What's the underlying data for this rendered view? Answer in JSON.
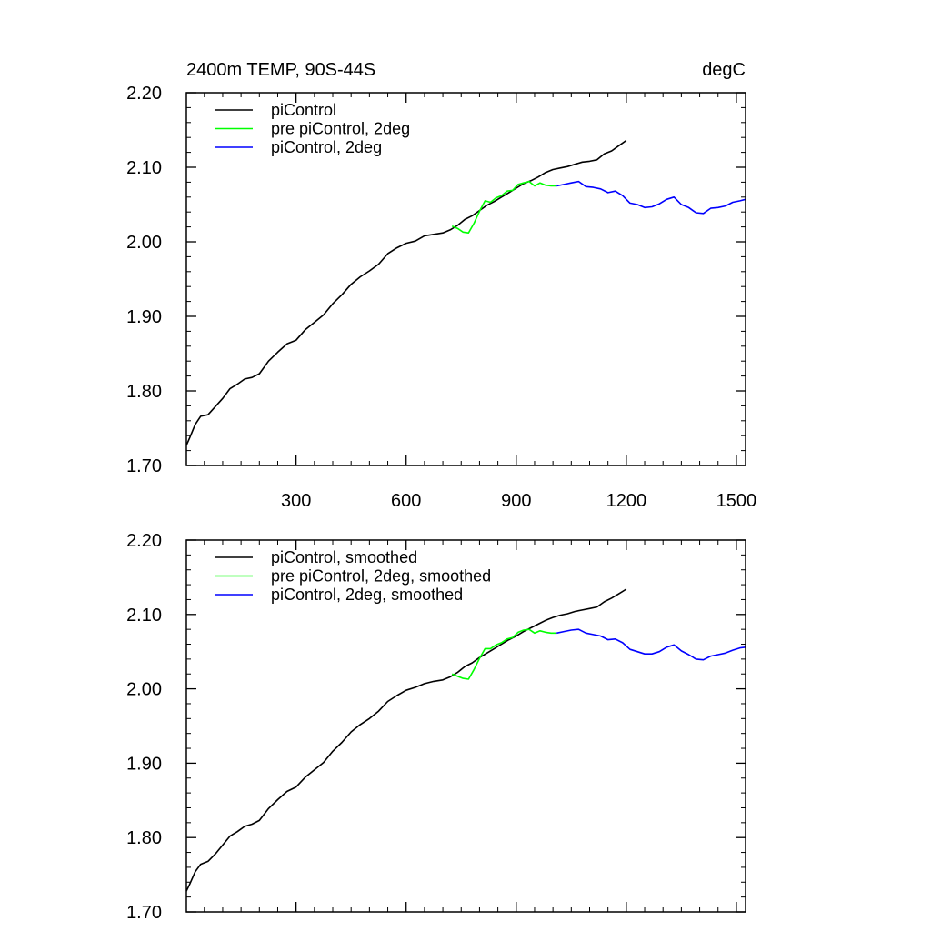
{
  "colors": {
    "piControl": "#000000",
    "pre_piControl_2deg": "#00ff00",
    "piControl_2deg": "#0000ff",
    "axes": "#000000",
    "background": "#ffffff"
  },
  "chart_data": [
    {
      "type": "line",
      "title_left": "2400m TEMP, 90S-44S",
      "title_right": "degC",
      "xlabel": "",
      "ylabel": "",
      "xlim": [
        1,
        1525
      ],
      "ylim": [
        1.7,
        2.2
      ],
      "x_ticks": [
        300,
        600,
        900,
        1200,
        1500
      ],
      "x_tick_labels": [
        "300",
        "600",
        "900",
        "1200",
        "1500"
      ],
      "y_ticks": [
        1.7,
        1.8,
        1.9,
        2.0,
        2.1,
        2.2
      ],
      "y_tick_labels": [
        "1.70",
        "1.80",
        "1.90",
        "2.00",
        "2.10",
        "2.20"
      ],
      "grid": false,
      "legend_position": "top-left",
      "series": [
        {
          "name": "piControl",
          "color_key": "piControl",
          "x": [
            1,
            10,
            25,
            40,
            60,
            80,
            100,
            120,
            140,
            160,
            180,
            200,
            225,
            250,
            275,
            300,
            325,
            350,
            375,
            400,
            425,
            450,
            475,
            500,
            525,
            550,
            575,
            600,
            625,
            650,
            675,
            700,
            720,
            740,
            760,
            780,
            800,
            820,
            840,
            860,
            880,
            900,
            920,
            940,
            960,
            980,
            1000,
            1020,
            1040,
            1060,
            1080,
            1100,
            1120,
            1140,
            1160,
            1180,
            1200
          ],
          "y": [
            1.727,
            1.737,
            1.755,
            1.766,
            1.768,
            1.779,
            1.79,
            1.803,
            1.809,
            1.816,
            1.818,
            1.823,
            1.84,
            1.852,
            1.863,
            1.868,
            1.882,
            1.892,
            1.902,
            1.917,
            1.929,
            1.943,
            1.953,
            1.961,
            1.97,
            1.984,
            1.992,
            1.998,
            2.001,
            2.008,
            2.01,
            2.012,
            2.016,
            2.022,
            2.03,
            2.035,
            2.042,
            2.049,
            2.054,
            2.06,
            2.066,
            2.072,
            2.078,
            2.082,
            2.087,
            2.093,
            2.097,
            2.099,
            2.101,
            2.104,
            2.107,
            2.108,
            2.11,
            2.118,
            2.122,
            2.129,
            2.136
          ]
        },
        {
          "name": "pre piControl, 2deg",
          "color_key": "pre_piControl_2deg",
          "x": [
            725,
            740,
            755,
            770,
            785,
            800,
            815,
            830,
            845,
            860,
            875,
            890,
            905,
            920,
            935,
            950,
            965,
            980,
            995,
            1010
          ],
          "y": [
            2.021,
            2.018,
            2.013,
            2.012,
            2.025,
            2.041,
            2.055,
            2.053,
            2.059,
            2.062,
            2.068,
            2.069,
            2.077,
            2.079,
            2.081,
            2.075,
            2.079,
            2.076,
            2.075,
            2.075
          ]
        },
        {
          "name": "piControl, 2deg",
          "color_key": "piControl_2deg",
          "x": [
            1010,
            1030,
            1050,
            1070,
            1090,
            1110,
            1130,
            1150,
            1170,
            1190,
            1210,
            1230,
            1250,
            1270,
            1290,
            1310,
            1330,
            1350,
            1370,
            1390,
            1410,
            1430,
            1450,
            1470,
            1490,
            1510,
            1525
          ],
          "y": [
            2.075,
            2.077,
            2.079,
            2.081,
            2.074,
            2.073,
            2.071,
            2.066,
            2.068,
            2.062,
            2.052,
            2.05,
            2.046,
            2.047,
            2.051,
            2.057,
            2.06,
            2.05,
            2.046,
            2.039,
            2.038,
            2.045,
            2.046,
            2.048,
            2.053,
            2.055,
            2.057
          ]
        }
      ]
    },
    {
      "type": "line",
      "xlim": [
        1,
        1525
      ],
      "ylim": [
        1.7,
        2.2
      ],
      "x_ticks": [
        300,
        600,
        900,
        1200,
        1500
      ],
      "y_ticks": [
        1.7,
        1.8,
        1.9,
        2.0,
        2.1,
        2.2
      ],
      "y_tick_labels": [
        "1.70",
        "1.80",
        "1.90",
        "2.00",
        "2.10",
        "2.20"
      ],
      "grid": false,
      "legend_position": "top-left",
      "series": [
        {
          "name": "piControl, smoothed",
          "color_key": "piControl",
          "x": [
            1,
            10,
            25,
            40,
            60,
            80,
            100,
            120,
            140,
            160,
            180,
            200,
            225,
            250,
            275,
            300,
            325,
            350,
            375,
            400,
            425,
            450,
            475,
            500,
            525,
            550,
            575,
            600,
            625,
            650,
            675,
            700,
            720,
            740,
            760,
            780,
            800,
            820,
            840,
            860,
            880,
            900,
            920,
            940,
            960,
            980,
            1000,
            1020,
            1040,
            1060,
            1080,
            1100,
            1120,
            1140,
            1160,
            1180,
            1200
          ],
          "y": [
            1.728,
            1.737,
            1.754,
            1.764,
            1.768,
            1.778,
            1.79,
            1.802,
            1.808,
            1.815,
            1.818,
            1.823,
            1.839,
            1.851,
            1.862,
            1.868,
            1.881,
            1.891,
            1.901,
            1.916,
            1.928,
            1.942,
            1.952,
            1.96,
            1.97,
            1.983,
            1.991,
            1.998,
            2.002,
            2.007,
            2.01,
            2.012,
            2.016,
            2.022,
            2.03,
            2.035,
            2.042,
            2.048,
            2.054,
            2.06,
            2.066,
            2.071,
            2.077,
            2.082,
            2.087,
            2.092,
            2.096,
            2.099,
            2.101,
            2.104,
            2.106,
            2.108,
            2.11,
            2.117,
            2.122,
            2.128,
            2.134
          ]
        },
        {
          "name": "pre piControl, 2deg, smoothed",
          "color_key": "pre_piControl_2deg",
          "x": [
            725,
            740,
            755,
            770,
            785,
            800,
            815,
            830,
            845,
            860,
            875,
            890,
            905,
            920,
            935,
            950,
            965,
            980,
            995,
            1010
          ],
          "y": [
            2.02,
            2.017,
            2.014,
            2.013,
            2.026,
            2.041,
            2.054,
            2.054,
            2.059,
            2.062,
            2.067,
            2.069,
            2.076,
            2.079,
            2.08,
            2.075,
            2.078,
            2.076,
            2.075,
            2.075
          ]
        },
        {
          "name": "piControl, 2deg, smoothed",
          "color_key": "piControl_2deg",
          "x": [
            1010,
            1030,
            1050,
            1070,
            1090,
            1110,
            1130,
            1150,
            1170,
            1190,
            1210,
            1230,
            1250,
            1270,
            1290,
            1310,
            1330,
            1350,
            1370,
            1390,
            1410,
            1430,
            1450,
            1470,
            1490,
            1510,
            1525
          ],
          "y": [
            2.075,
            2.077,
            2.079,
            2.08,
            2.075,
            2.073,
            2.071,
            2.066,
            2.067,
            2.062,
            2.053,
            2.05,
            2.047,
            2.047,
            2.05,
            2.056,
            2.059,
            2.051,
            2.046,
            2.04,
            2.039,
            2.044,
            2.046,
            2.048,
            2.052,
            2.055,
            2.056
          ]
        }
      ]
    }
  ]
}
